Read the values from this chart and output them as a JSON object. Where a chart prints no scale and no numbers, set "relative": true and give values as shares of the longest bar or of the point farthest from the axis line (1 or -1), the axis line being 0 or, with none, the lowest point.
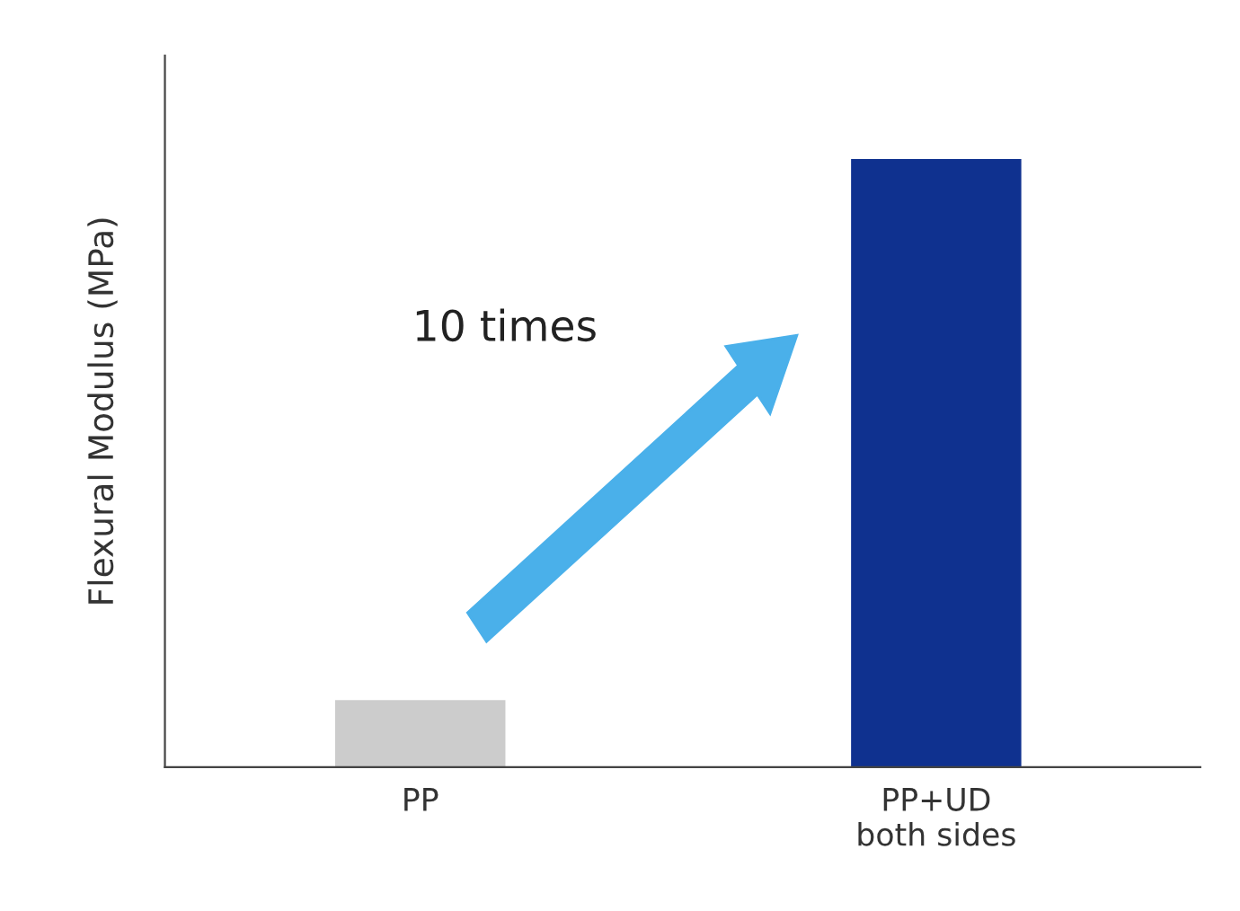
{
  "chart_data": {
    "type": "bar",
    "relative": true,
    "ylabel": "Flexural Modulus (MPa)",
    "categories": [
      "PP",
      "PP+UD\nboth sides"
    ],
    "values": [
      0.11,
      1
    ],
    "colors": [
      "#cccccc",
      "#0f318f"
    ],
    "annotations": [
      "10 times"
    ]
  }
}
